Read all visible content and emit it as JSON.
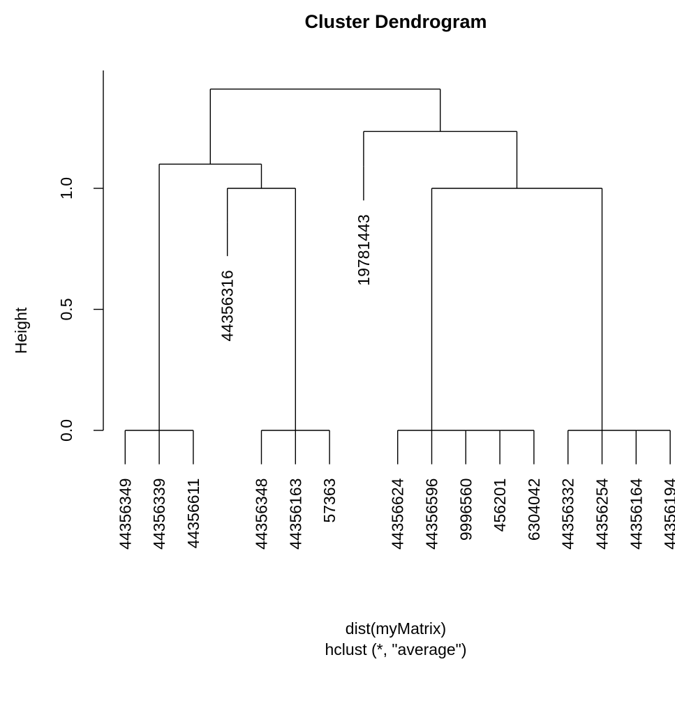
{
  "chart_data": {
    "type": "dendrogram",
    "title": "Cluster Dendrogram",
    "ylabel": "Height",
    "xlabel": "dist(myMatrix)",
    "sub": "hclust (*, \"average\")",
    "ylim": [
      0,
      1.45
    ],
    "yticks": [
      0.0,
      0.5,
      1.0
    ],
    "ytick_labels": [
      "0.0",
      "0.5",
      "1.0"
    ],
    "leaves": [
      {
        "label": "44356349",
        "pos": 1
      },
      {
        "label": "44356339",
        "pos": 2
      },
      {
        "label": "44356611",
        "pos": 3
      },
      {
        "label": "44356348",
        "pos": 5
      },
      {
        "label": "44356163",
        "pos": 6
      },
      {
        "label": "57363",
        "pos": 7
      },
      {
        "label": "44356624",
        "pos": 9
      },
      {
        "label": "44356596",
        "pos": 10
      },
      {
        "label": "9996560",
        "pos": 11
      },
      {
        "label": "456201",
        "pos": 12
      },
      {
        "label": "6304042",
        "pos": 13
      },
      {
        "label": "44356332",
        "pos": 14
      },
      {
        "label": "44356254",
        "pos": 15
      },
      {
        "label": "44356164",
        "pos": 16
      },
      {
        "label": "44356194",
        "pos": 17
      }
    ],
    "high_leaves": [
      {
        "label": "44356316",
        "pos": 4,
        "height": 0.86
      },
      {
        "label": "19781443",
        "pos": 8,
        "height": 1.09
      }
    ],
    "merges": [
      {
        "left": 1,
        "right": 2,
        "height": 0.0
      },
      {
        "left": 2,
        "right": 3,
        "height": 0.0
      },
      {
        "left": 5,
        "right": 6,
        "height": 0.0
      },
      {
        "left": 6,
        "right": 7,
        "height": 0.0
      },
      {
        "left": 9,
        "right": 10,
        "height": 0.0
      },
      {
        "left": 10,
        "right": 11,
        "height": 0.0
      },
      {
        "left": 11,
        "right": 12,
        "height": 0.0
      },
      {
        "left": 12,
        "right": 13,
        "height": 0.0
      },
      {
        "left": 14,
        "right": 15,
        "height": 0.0
      },
      {
        "left": 15,
        "right": 16,
        "height": 0.0
      },
      {
        "left": 16,
        "right": 17,
        "height": 0.0
      },
      {
        "left": 4,
        "right": 6,
        "height": 1.0,
        "left_from": 0.86,
        "right_from": 0.0
      },
      {
        "left": 10,
        "right": 15,
        "height": 1.0,
        "left_from": 0.0,
        "right_from": 0.0
      },
      {
        "left": 2,
        "right": 5,
        "height": 1.1,
        "left_from": 0.0,
        "right_from": 1.0
      },
      {
        "left": 8,
        "right": 12.5,
        "height": 1.235,
        "left_from": 1.09,
        "right_from": 1.0
      },
      {
        "left": 3.5,
        "right": 10.25,
        "height": 1.41,
        "left_from": 1.1,
        "right_from": 1.235
      }
    ],
    "leaf_hang": 0.14
  }
}
